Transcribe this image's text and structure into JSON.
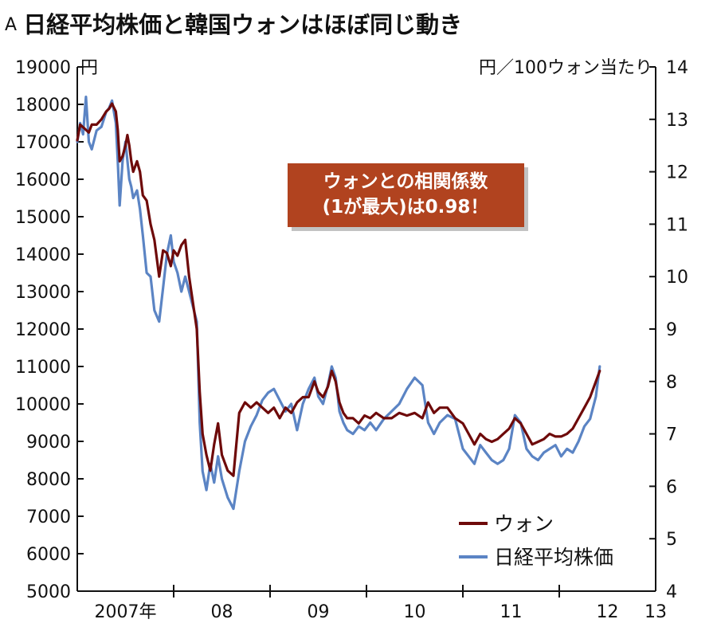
{
  "header": {
    "mark": "A",
    "title": "日経平均株価と韓国ウォンはほぼ同じ動き"
  },
  "colors": {
    "won": "#6e0a0a",
    "nikkei": "#5b84c4",
    "annotation_bg": "#b1431f",
    "axis": "#111111"
  },
  "chart_data": {
    "type": "line",
    "left_axis": {
      "unit": "円",
      "range": [
        5000,
        19000
      ],
      "ticks": [
        "5000",
        "6000",
        "7000",
        "8000",
        "9000",
        "10000",
        "11000",
        "12000",
        "13000",
        "14000",
        "15000",
        "16000",
        "17000",
        "18000",
        "19000"
      ]
    },
    "right_axis": {
      "unit": "円／100ウォン当たり",
      "range": [
        4,
        14
      ],
      "ticks": [
        "4",
        "5",
        "6",
        "7",
        "8",
        "9",
        "10",
        "11",
        "12",
        "13",
        "14"
      ]
    },
    "x_axis": {
      "range": [
        2007,
        2013
      ],
      "tick_labels": [
        "2007年",
        "08",
        "09",
        "10",
        "11",
        "12",
        "13"
      ]
    },
    "annotation": {
      "lines": [
        "ウォンとの相関係数",
        "(1が最大)は0.98！"
      ]
    },
    "legend": {
      "placement": "bottom-right"
    },
    "series": [
      {
        "name": "ウォン",
        "axis": "right",
        "color": "#6e0a0a",
        "points": [
          [
            2007.0,
            12.6
          ],
          [
            2007.03,
            12.9
          ],
          [
            2007.06,
            12.85
          ],
          [
            2007.09,
            12.8
          ],
          [
            2007.12,
            12.75
          ],
          [
            2007.15,
            12.9
          ],
          [
            2007.2,
            12.9
          ],
          [
            2007.25,
            13.0
          ],
          [
            2007.3,
            13.15
          ],
          [
            2007.33,
            13.2
          ],
          [
            2007.36,
            13.3
          ],
          [
            2007.4,
            13.15
          ],
          [
            2007.42,
            12.8
          ],
          [
            2007.44,
            12.2
          ],
          [
            2007.47,
            12.3
          ],
          [
            2007.5,
            12.5
          ],
          [
            2007.52,
            12.7
          ],
          [
            2007.54,
            12.5
          ],
          [
            2007.56,
            12.2
          ],
          [
            2007.58,
            12.0
          ],
          [
            2007.62,
            12.2
          ],
          [
            2007.65,
            12.0
          ],
          [
            2007.68,
            11.55
          ],
          [
            2007.72,
            11.45
          ],
          [
            2007.76,
            11.0
          ],
          [
            2007.8,
            10.7
          ],
          [
            2007.85,
            10.0
          ],
          [
            2007.89,
            10.5
          ],
          [
            2007.93,
            10.45
          ],
          [
            2007.97,
            10.2
          ],
          [
            2008.0,
            10.5
          ],
          [
            2008.04,
            10.4
          ],
          [
            2008.08,
            10.6
          ],
          [
            2008.12,
            10.7
          ],
          [
            2008.16,
            10.0
          ],
          [
            2008.2,
            9.5
          ],
          [
            2008.24,
            9.0
          ],
          [
            2008.27,
            7.8
          ],
          [
            2008.3,
            7.0
          ],
          [
            2008.34,
            6.6
          ],
          [
            2008.38,
            6.3
          ],
          [
            2008.42,
            6.8
          ],
          [
            2008.46,
            7.2
          ],
          [
            2008.5,
            6.6
          ],
          [
            2008.56,
            6.3
          ],
          [
            2008.62,
            6.2
          ],
          [
            2008.68,
            7.4
          ],
          [
            2008.74,
            7.6
          ],
          [
            2008.8,
            7.5
          ],
          [
            2008.86,
            7.6
          ],
          [
            2008.92,
            7.5
          ],
          [
            2008.98,
            7.4
          ],
          [
            2009.04,
            7.5
          ],
          [
            2009.1,
            7.3
          ],
          [
            2009.16,
            7.5
          ],
          [
            2009.22,
            7.4
          ],
          [
            2009.28,
            7.6
          ],
          [
            2009.34,
            7.7
          ],
          [
            2009.4,
            7.7
          ],
          [
            2009.46,
            8.0
          ],
          [
            2009.5,
            7.8
          ],
          [
            2009.55,
            7.7
          ],
          [
            2009.6,
            7.9
          ],
          [
            2009.64,
            8.2
          ],
          [
            2009.68,
            8.0
          ],
          [
            2009.72,
            7.6
          ],
          [
            2009.76,
            7.4
          ],
          [
            2009.8,
            7.3
          ],
          [
            2009.86,
            7.3
          ],
          [
            2009.92,
            7.2
          ],
          [
            2009.98,
            7.35
          ],
          [
            2010.04,
            7.3
          ],
          [
            2010.1,
            7.4
          ],
          [
            2010.18,
            7.3
          ],
          [
            2010.26,
            7.3
          ],
          [
            2010.34,
            7.4
          ],
          [
            2010.42,
            7.35
          ],
          [
            2010.5,
            7.4
          ],
          [
            2010.58,
            7.3
          ],
          [
            2010.64,
            7.6
          ],
          [
            2010.7,
            7.4
          ],
          [
            2010.76,
            7.5
          ],
          [
            2010.84,
            7.5
          ],
          [
            2010.92,
            7.3
          ],
          [
            2011.0,
            7.2
          ],
          [
            2011.06,
            7.0
          ],
          [
            2011.12,
            6.8
          ],
          [
            2011.18,
            7.0
          ],
          [
            2011.24,
            6.9
          ],
          [
            2011.3,
            6.85
          ],
          [
            2011.36,
            6.9
          ],
          [
            2011.42,
            7.0
          ],
          [
            2011.48,
            7.1
          ],
          [
            2011.54,
            7.3
          ],
          [
            2011.6,
            7.2
          ],
          [
            2011.66,
            7.0
          ],
          [
            2011.72,
            6.8
          ],
          [
            2011.78,
            6.85
          ],
          [
            2011.84,
            6.9
          ],
          [
            2011.9,
            7.0
          ],
          [
            2011.96,
            6.95
          ],
          [
            2012.02,
            6.95
          ],
          [
            2012.08,
            7.0
          ],
          [
            2012.14,
            7.1
          ],
          [
            2012.2,
            7.3
          ],
          [
            2012.26,
            7.5
          ],
          [
            2012.32,
            7.7
          ],
          [
            2012.38,
            8.0
          ],
          [
            2012.42,
            8.2
          ]
        ]
      },
      {
        "name": "日経平均株価",
        "axis": "left",
        "color": "#5b84c4",
        "points": [
          [
            2007.0,
            17000
          ],
          [
            2007.03,
            17500
          ],
          [
            2007.06,
            17200
          ],
          [
            2007.09,
            18200
          ],
          [
            2007.12,
            17000
          ],
          [
            2007.15,
            16800
          ],
          [
            2007.2,
            17300
          ],
          [
            2007.25,
            17400
          ],
          [
            2007.3,
            17800
          ],
          [
            2007.33,
            17900
          ],
          [
            2007.36,
            18100
          ],
          [
            2007.4,
            17500
          ],
          [
            2007.42,
            16500
          ],
          [
            2007.44,
            15300
          ],
          [
            2007.47,
            16500
          ],
          [
            2007.5,
            17000
          ],
          [
            2007.52,
            16500
          ],
          [
            2007.54,
            16000
          ],
          [
            2007.56,
            15800
          ],
          [
            2007.58,
            15500
          ],
          [
            2007.62,
            15700
          ],
          [
            2007.65,
            15200
          ],
          [
            2007.68,
            14500
          ],
          [
            2007.72,
            13500
          ],
          [
            2007.76,
            13400
          ],
          [
            2007.8,
            12500
          ],
          [
            2007.85,
            12200
          ],
          [
            2007.89,
            13100
          ],
          [
            2007.93,
            14000
          ],
          [
            2007.97,
            14500
          ],
          [
            2008.0,
            13800
          ],
          [
            2008.04,
            13500
          ],
          [
            2008.08,
            13000
          ],
          [
            2008.12,
            13400
          ],
          [
            2008.16,
            13000
          ],
          [
            2008.2,
            12600
          ],
          [
            2008.24,
            12200
          ],
          [
            2008.27,
            9500
          ],
          [
            2008.3,
            8200
          ],
          [
            2008.34,
            7700
          ],
          [
            2008.38,
            8400
          ],
          [
            2008.42,
            7900
          ],
          [
            2008.46,
            8600
          ],
          [
            2008.5,
            8000
          ],
          [
            2008.56,
            7500
          ],
          [
            2008.62,
            7200
          ],
          [
            2008.68,
            8200
          ],
          [
            2008.74,
            9000
          ],
          [
            2008.8,
            9400
          ],
          [
            2008.86,
            9700
          ],
          [
            2008.92,
            10100
          ],
          [
            2008.98,
            10300
          ],
          [
            2009.04,
            10400
          ],
          [
            2009.1,
            10100
          ],
          [
            2009.16,
            9800
          ],
          [
            2009.22,
            10000
          ],
          [
            2009.28,
            9300
          ],
          [
            2009.34,
            10000
          ],
          [
            2009.4,
            10400
          ],
          [
            2009.46,
            10700
          ],
          [
            2009.5,
            10200
          ],
          [
            2009.55,
            10000
          ],
          [
            2009.6,
            10500
          ],
          [
            2009.64,
            11000
          ],
          [
            2009.68,
            10700
          ],
          [
            2009.72,
            9800
          ],
          [
            2009.76,
            9500
          ],
          [
            2009.8,
            9300
          ],
          [
            2009.86,
            9200
          ],
          [
            2009.92,
            9400
          ],
          [
            2009.98,
            9300
          ],
          [
            2010.04,
            9500
          ],
          [
            2010.1,
            9300
          ],
          [
            2010.18,
            9600
          ],
          [
            2010.26,
            9800
          ],
          [
            2010.34,
            10000
          ],
          [
            2010.42,
            10400
          ],
          [
            2010.5,
            10700
          ],
          [
            2010.58,
            10500
          ],
          [
            2010.64,
            9500
          ],
          [
            2010.7,
            9200
          ],
          [
            2010.76,
            9500
          ],
          [
            2010.84,
            9700
          ],
          [
            2010.92,
            9600
          ],
          [
            2011.0,
            8800
          ],
          [
            2011.06,
            8600
          ],
          [
            2011.12,
            8400
          ],
          [
            2011.18,
            8900
          ],
          [
            2011.24,
            8700
          ],
          [
            2011.3,
            8500
          ],
          [
            2011.36,
            8400
          ],
          [
            2011.42,
            8500
          ],
          [
            2011.48,
            8800
          ],
          [
            2011.54,
            9700
          ],
          [
            2011.6,
            9500
          ],
          [
            2011.66,
            8800
          ],
          [
            2011.72,
            8600
          ],
          [
            2011.78,
            8500
          ],
          [
            2011.84,
            8700
          ],
          [
            2011.9,
            8800
          ],
          [
            2011.96,
            8900
          ],
          [
            2012.02,
            8600
          ],
          [
            2012.08,
            8800
          ],
          [
            2012.14,
            8700
          ],
          [
            2012.2,
            9000
          ],
          [
            2012.26,
            9400
          ],
          [
            2012.32,
            9600
          ],
          [
            2012.38,
            10200
          ],
          [
            2012.42,
            11000
          ]
        ]
      }
    ]
  }
}
